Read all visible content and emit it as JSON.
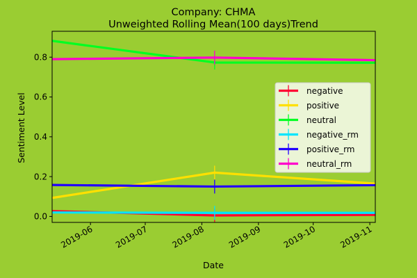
{
  "chart_data": {
    "type": "line",
    "title_line1": "Company: CHMA",
    "title_line2": "Unweighted Rolling Mean(100 days)Trend",
    "xlabel": "Date",
    "ylabel": "Sentiment Level",
    "xlim": [
      "2019-05-11",
      "2019-11-04"
    ],
    "ylim": [
      -0.03,
      0.93
    ],
    "yticks": [
      0.0,
      0.2,
      0.4,
      0.6,
      0.8
    ],
    "xticks": [
      {
        "date": "2019-06-01",
        "label": "2019-06"
      },
      {
        "date": "2019-07-01",
        "label": "2019-07"
      },
      {
        "date": "2019-08-01",
        "label": "2019-08"
      },
      {
        "date": "2019-09-01",
        "label": "2019-09"
      },
      {
        "date": "2019-10-01",
        "label": "2019-10"
      },
      {
        "date": "2019-11-01",
        "label": "2019-11"
      }
    ],
    "grid": false,
    "legend_position": "center-right",
    "series": [
      {
        "name": "negative",
        "color": "#ff0033",
        "x": [
          "2019-05-11",
          "2019-08-08",
          "2019-11-04"
        ],
        "y": [
          0.027,
          0.005,
          0.008
        ]
      },
      {
        "name": "positive",
        "color": "#ffe000",
        "x": [
          "2019-05-11",
          "2019-08-08",
          "2019-11-04"
        ],
        "y": [
          0.093,
          0.22,
          0.165
        ]
      },
      {
        "name": "neutral",
        "color": "#00ff22",
        "x": [
          "2019-05-11",
          "2019-08-08",
          "2019-11-04"
        ],
        "y": [
          0.882,
          0.773,
          0.772
        ]
      },
      {
        "name": "negative_rm",
        "color": "#00e5ff",
        "x": [
          "2019-05-11",
          "2019-08-08",
          "2019-11-04"
        ],
        "y": [
          0.02,
          0.018,
          0.018
        ]
      },
      {
        "name": "positive_rm",
        "color": "#2200ff",
        "x": [
          "2019-05-11",
          "2019-08-08",
          "2019-11-04"
        ],
        "y": [
          0.158,
          0.15,
          0.157
        ]
      },
      {
        "name": "neutral_rm",
        "color": "#ff00cc",
        "x": [
          "2019-05-11",
          "2019-08-08",
          "2019-11-04"
        ],
        "y": [
          0.79,
          0.798,
          0.785
        ]
      }
    ],
    "error_marker_date": "2019-08-08"
  }
}
